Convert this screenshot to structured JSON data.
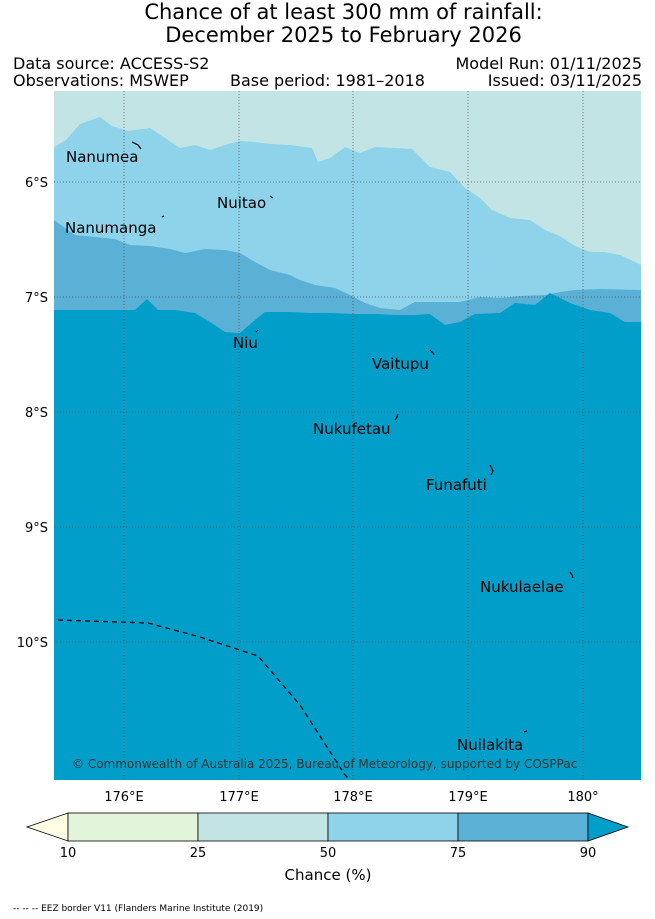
{
  "title": {
    "line1": "Chance of at least 300 mm of rainfall:",
    "line2": "December 2025 to February 2026"
  },
  "meta": {
    "data_source": "Data source: ACCESS-S2",
    "observations": "Observations: MSWEP",
    "base_period": "Base period: 1981–2018",
    "model_run": "Model Run: 01/11/2025",
    "issued": "Issued: 03/11/2025"
  },
  "map": {
    "lon_ticks": [
      "176°E",
      "177°E",
      "178°E",
      "179°E",
      "180°"
    ],
    "lat_ticks": [
      "6°S",
      "7°S",
      "8°S",
      "9°S",
      "10°S"
    ],
    "places": [
      "Nanumea",
      "Nuitao",
      "Nanumanga",
      "Niu",
      "Vaitupu",
      "Nukufetau",
      "Funafuti",
      "Nukulaelae",
      "Nuilakita"
    ],
    "copyright": "© Commonwealth of Australia 2025, Bureau of Meteorology, supported by COSPPac",
    "grid": true,
    "lon_range": [
      175.5,
      180.5
    ],
    "lat_range": [
      -5.3,
      -11.3
    ]
  },
  "colorbar": {
    "labels": [
      "10",
      "25",
      "50",
      "75",
      "90"
    ],
    "title": "Chance (%)",
    "colors": [
      "#fdfde4",
      "#e2f4d9",
      "#c3e4e4",
      "#8ed3ea",
      "#5ab1d5",
      "#009ec9"
    ]
  },
  "footnote": "-- -- -- EEZ border V11 (Flanders Marine Institute (2019)"
}
